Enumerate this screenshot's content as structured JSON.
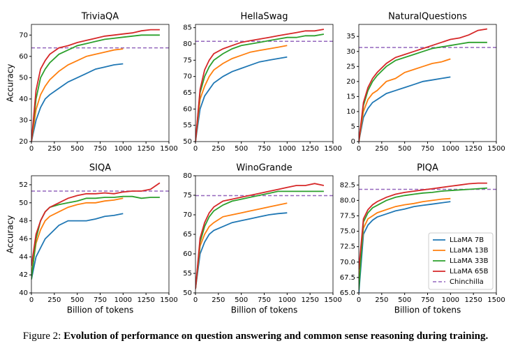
{
  "chart_data": [
    {
      "type": "line",
      "title": "TriviaQA",
      "ylabel": "Accuracy",
      "xlim": [
        0,
        1500
      ],
      "xticks": [
        0,
        250,
        500,
        750,
        1000,
        1250,
        1500
      ],
      "ylim": [
        20,
        75
      ],
      "yticks": [
        20,
        30,
        40,
        50,
        60,
        70
      ],
      "series": [
        {
          "color": "#1f77b4",
          "x": [
            0,
            50,
            100,
            150,
            200,
            300,
            400,
            500,
            600,
            700,
            800,
            900,
            1000
          ],
          "values": [
            20,
            30,
            36,
            40,
            42,
            45,
            48,
            50,
            52,
            54,
            55,
            56,
            56.5
          ]
        },
        {
          "color": "#ff7f0e",
          "x": [
            0,
            50,
            100,
            150,
            200,
            300,
            400,
            500,
            600,
            700,
            800,
            900,
            1000
          ],
          "values": [
            20,
            35,
            42,
            46,
            49,
            53,
            56,
            58,
            60,
            61,
            62,
            63,
            63.5
          ]
        },
        {
          "color": "#2ca02c",
          "x": [
            0,
            50,
            100,
            150,
            200,
            300,
            400,
            500,
            600,
            700,
            800,
            900,
            1000,
            1100,
            1200,
            1300,
            1400
          ],
          "values": [
            20,
            40,
            50,
            54,
            57,
            61,
            63,
            65,
            66,
            67,
            68,
            68.5,
            69,
            69.5,
            70,
            70,
            70
          ]
        },
        {
          "color": "#d62728",
          "x": [
            0,
            50,
            100,
            150,
            200,
            300,
            400,
            500,
            600,
            700,
            800,
            900,
            1000,
            1100,
            1200,
            1300,
            1400
          ],
          "values": [
            20,
            44,
            54,
            58,
            61,
            64,
            65,
            66.5,
            67.5,
            68.5,
            69.5,
            70,
            70.5,
            71,
            72,
            72.5,
            72.5
          ]
        }
      ],
      "reference": {
        "value": 64,
        "color": "#9467bd"
      }
    },
    {
      "type": "line",
      "title": "HellaSwag",
      "xlim": [
        0,
        1500
      ],
      "xticks": [
        0,
        250,
        500,
        750,
        1000,
        1250,
        1500
      ],
      "ylim": [
        50,
        86
      ],
      "yticks": [
        50,
        55,
        60,
        65,
        70,
        75,
        80,
        85
      ],
      "series": [
        {
          "color": "#1f77b4",
          "x": [
            0,
            50,
            100,
            150,
            200,
            300,
            400,
            500,
            600,
            700,
            800,
            900,
            1000
          ],
          "values": [
            50,
            60,
            64,
            66,
            68,
            70,
            71.5,
            72.5,
            73.5,
            74.5,
            75,
            75.5,
            76
          ]
        },
        {
          "color": "#ff7f0e",
          "x": [
            0,
            50,
            100,
            150,
            200,
            300,
            400,
            500,
            600,
            700,
            800,
            900,
            1000
          ],
          "values": [
            50,
            63,
            67,
            70,
            72,
            74,
            75.5,
            76.5,
            77.5,
            78,
            78.5,
            79,
            79.5
          ]
        },
        {
          "color": "#2ca02c",
          "x": [
            0,
            50,
            100,
            150,
            200,
            300,
            400,
            500,
            600,
            700,
            800,
            900,
            1000,
            1100,
            1200,
            1300,
            1400
          ],
          "values": [
            50,
            65,
            70,
            73,
            75,
            77,
            78.5,
            79.5,
            80,
            80.5,
            81,
            81.5,
            82,
            82,
            82.5,
            82.5,
            83
          ]
        },
        {
          "color": "#d62728",
          "x": [
            0,
            50,
            100,
            150,
            200,
            300,
            400,
            500,
            600,
            700,
            800,
            900,
            1000,
            1100,
            1200,
            1300,
            1400
          ],
          "values": [
            50,
            66,
            72,
            75,
            77,
            78.5,
            79.5,
            80.5,
            81,
            81.5,
            82,
            82.5,
            83,
            83.5,
            84,
            84,
            84.5
          ]
        }
      ],
      "reference": {
        "value": 80.8,
        "color": "#9467bd"
      }
    },
    {
      "type": "line",
      "title": "NaturalQuestions",
      "xlim": [
        0,
        1500
      ],
      "xticks": [
        0,
        250,
        500,
        750,
        1000,
        1250,
        1500
      ],
      "ylim": [
        0,
        39
      ],
      "yticks": [
        0,
        5,
        10,
        15,
        20,
        25,
        30,
        35
      ],
      "series": [
        {
          "color": "#1f77b4",
          "x": [
            0,
            50,
            100,
            150,
            200,
            300,
            400,
            500,
            600,
            700,
            800,
            900,
            1000
          ],
          "values": [
            0,
            8,
            11,
            13,
            14,
            16,
            17,
            18,
            19,
            20,
            20.5,
            21,
            21.5
          ]
        },
        {
          "color": "#ff7f0e",
          "x": [
            0,
            50,
            100,
            150,
            200,
            300,
            400,
            500,
            600,
            700,
            800,
            900,
            1000
          ],
          "values": [
            0,
            10,
            14,
            16,
            17,
            20,
            21,
            23,
            24,
            25,
            26,
            26.5,
            27.5
          ]
        },
        {
          "color": "#2ca02c",
          "x": [
            0,
            50,
            100,
            150,
            200,
            300,
            400,
            500,
            600,
            700,
            800,
            900,
            1000,
            1100,
            1200,
            1300,
            1400
          ],
          "values": [
            0,
            12,
            17,
            20,
            22,
            25,
            27,
            28,
            29,
            30,
            31,
            31.5,
            32,
            32.5,
            33,
            33,
            33
          ]
        },
        {
          "color": "#d62728",
          "x": [
            0,
            50,
            100,
            150,
            200,
            300,
            400,
            500,
            600,
            700,
            800,
            900,
            1000,
            1100,
            1200,
            1300,
            1400
          ],
          "values": [
            0,
            13,
            18,
            21,
            23,
            26,
            28,
            29,
            30,
            31,
            32,
            33,
            34,
            34.5,
            35.5,
            37,
            37.5
          ]
        }
      ],
      "reference": {
        "value": 31.3,
        "color": "#9467bd"
      }
    },
    {
      "type": "line",
      "title": "SIQA",
      "ylabel": "Accuracy",
      "xlabel": "Billion of tokens",
      "xlim": [
        0,
        1500
      ],
      "xticks": [
        0,
        250,
        500,
        750,
        1000,
        1250,
        1500
      ],
      "ylim": [
        40,
        53
      ],
      "yticks": [
        40,
        42,
        44,
        46,
        48,
        50,
        52
      ],
      "series": [
        {
          "color": "#1f77b4",
          "x": [
            0,
            50,
            100,
            150,
            200,
            300,
            400,
            500,
            600,
            700,
            800,
            900,
            1000
          ],
          "values": [
            41.5,
            44,
            45,
            46,
            46.5,
            47.5,
            48,
            48,
            48,
            48.2,
            48.5,
            48.6,
            48.8
          ]
        },
        {
          "color": "#ff7f0e",
          "x": [
            0,
            50,
            100,
            150,
            200,
            300,
            400,
            500,
            600,
            700,
            800,
            900,
            1000
          ],
          "values": [
            42,
            45.5,
            47,
            48,
            48.5,
            49,
            49.5,
            49.8,
            50,
            50,
            50.2,
            50.3,
            50.5
          ]
        },
        {
          "color": "#2ca02c",
          "x": [
            0,
            50,
            100,
            150,
            200,
            300,
            400,
            500,
            600,
            700,
            800,
            900,
            1000,
            1100,
            1200,
            1300,
            1400
          ],
          "values": [
            41.5,
            46,
            48,
            49,
            49.5,
            49.8,
            50,
            50.2,
            50.5,
            50.5,
            50.6,
            50.6,
            50.7,
            50.7,
            50.5,
            50.6,
            50.6
          ]
        },
        {
          "color": "#d62728",
          "x": [
            0,
            50,
            100,
            150,
            200,
            300,
            400,
            500,
            600,
            700,
            800,
            900,
            1000,
            1100,
            1200,
            1300,
            1400
          ],
          "values": [
            43,
            46.5,
            48,
            49,
            49.5,
            50,
            50.5,
            50.8,
            51,
            51,
            51.1,
            51,
            51.2,
            51.3,
            51.3,
            51.5,
            52.2
          ]
        }
      ],
      "reference": {
        "value": 51.3,
        "color": "#9467bd"
      }
    },
    {
      "type": "line",
      "title": "WinoGrande",
      "xlabel": "Billion of tokens",
      "xlim": [
        0,
        1500
      ],
      "xticks": [
        0,
        250,
        500,
        750,
        1000,
        1250,
        1500
      ],
      "ylim": [
        50,
        80
      ],
      "yticks": [
        50,
        55,
        60,
        65,
        70,
        75,
        80
      ],
      "series": [
        {
          "color": "#1f77b4",
          "x": [
            0,
            50,
            100,
            150,
            200,
            300,
            400,
            500,
            600,
            700,
            800,
            900,
            1000
          ],
          "values": [
            51,
            60,
            63,
            65,
            66,
            67,
            68,
            68.5,
            69,
            69.5,
            70,
            70.3,
            70.5
          ]
        },
        {
          "color": "#ff7f0e",
          "x": [
            0,
            50,
            100,
            150,
            200,
            300,
            400,
            500,
            600,
            700,
            800,
            900,
            1000
          ],
          "values": [
            51,
            62,
            65,
            67,
            68,
            69.5,
            70,
            70.5,
            71,
            71.5,
            72,
            72.5,
            73
          ]
        },
        {
          "color": "#2ca02c",
          "x": [
            0,
            50,
            100,
            150,
            200,
            300,
            400,
            500,
            600,
            700,
            800,
            900,
            1000,
            1100,
            1200,
            1300,
            1400
          ],
          "values": [
            51,
            63,
            67,
            69.5,
            71,
            72.5,
            73.5,
            74,
            74.5,
            75,
            75.5,
            76,
            76,
            76,
            76,
            76,
            76
          ]
        },
        {
          "color": "#d62728",
          "x": [
            0,
            50,
            100,
            150,
            200,
            300,
            400,
            500,
            600,
            700,
            800,
            900,
            1000,
            1100,
            1200,
            1300,
            1400
          ],
          "values": [
            51,
            64,
            68,
            70.5,
            72,
            73.5,
            74,
            74.5,
            75,
            75.5,
            76,
            76.5,
            77,
            77.5,
            77.5,
            78,
            77.5
          ]
        }
      ],
      "reference": {
        "value": 74.9,
        "color": "#9467bd"
      }
    },
    {
      "type": "line",
      "title": "PIQA",
      "xlabel": "Billion of tokens",
      "legend": "lower right",
      "xlim": [
        0,
        1500
      ],
      "xticks": [
        0,
        250,
        500,
        750,
        1000,
        1250,
        1500
      ],
      "ylim": [
        65,
        84
      ],
      "yticks": [
        {
          "value": 65,
          "label": "65.0"
        },
        67.5,
        {
          "value": 70,
          "label": "70.0"
        },
        72.5,
        {
          "value": 75,
          "label": "75.0"
        },
        77.5,
        {
          "value": 80,
          "label": "80.0"
        },
        82.5
      ],
      "series": [
        {
          "name": "LLaMA 7B",
          "color": "#1f77b4",
          "x": [
            0,
            50,
            100,
            150,
            200,
            300,
            400,
            500,
            600,
            700,
            800,
            900,
            1000
          ],
          "values": [
            65,
            74.5,
            76,
            76.8,
            77.3,
            77.8,
            78.3,
            78.6,
            79,
            79.2,
            79.4,
            79.6,
            79.8
          ]
        },
        {
          "name": "LLaMA 13B",
          "color": "#ff7f0e",
          "x": [
            0,
            50,
            100,
            150,
            200,
            300,
            400,
            500,
            600,
            700,
            800,
            900,
            1000
          ],
          "values": [
            67,
            75.5,
            77,
            77.5,
            78,
            78.5,
            79,
            79.3,
            79.5,
            79.8,
            80,
            80.2,
            80.3
          ]
        },
        {
          "name": "LLaMA 33B",
          "color": "#2ca02c",
          "x": [
            0,
            50,
            100,
            150,
            200,
            300,
            400,
            500,
            600,
            700,
            800,
            900,
            1000,
            1100,
            1200,
            1300,
            1400
          ],
          "values": [
            65.5,
            76.5,
            78,
            78.8,
            79.2,
            80,
            80.5,
            80.8,
            81,
            81.2,
            81.3,
            81.5,
            81.6,
            81.7,
            81.8,
            81.9,
            82
          ]
        },
        {
          "name": "LLaMA 65B",
          "color": "#d62728",
          "x": [
            0,
            50,
            100,
            150,
            200,
            300,
            400,
            500,
            600,
            700,
            800,
            900,
            1000,
            1100,
            1200,
            1300,
            1400
          ],
          "values": [
            68.8,
            77,
            78.5,
            79.3,
            79.8,
            80.5,
            81,
            81.3,
            81.5,
            81.7,
            81.9,
            82.1,
            82.3,
            82.5,
            82.7,
            82.8,
            82.8
          ]
        }
      ],
      "reference": {
        "name": "Chinchilla",
        "value": 81.8,
        "color": "#9467bd"
      }
    }
  ],
  "caption": {
    "label": "Figure 2:",
    "text": "Evolution of performance on question answering and common sense reasoning during training."
  }
}
